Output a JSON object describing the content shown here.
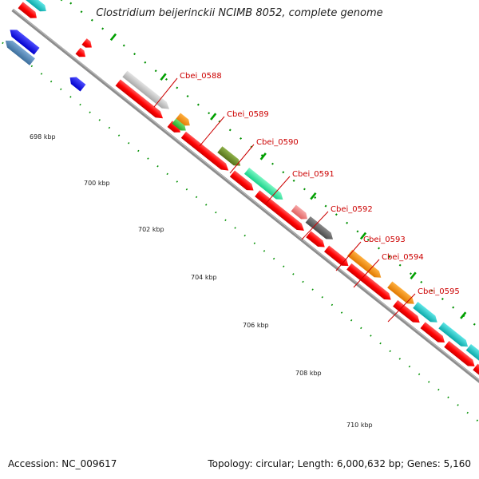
{
  "title": "Clostridium beijerinckii NCIMB 8052, complete genome",
  "accession": "Accession: NC_009617",
  "summary": "Topology: circular; Length: 6,000,632 bp; Genes: 5,160",
  "ticks": [
    "698 kbp",
    "700 kbp",
    "702 kbp",
    "704 kbp",
    "706 kbp",
    "708 kbp",
    "710 kbp"
  ],
  "gene_labels": [
    "Cbei_0588",
    "Cbei_0589",
    "Cbei_0590",
    "Cbei_0591",
    "Cbei_0592",
    "Cbei_0593",
    "Cbei_0594",
    "Cbei_0595"
  ],
  "colors": {
    "backbone": "#8c8c8c",
    "cds": "#ff0000",
    "minus_strand_blue": "#0000ff",
    "minus_strand_steel": "#4f86b8",
    "cyan": "#14c8c8",
    "gray": "#c8c8c8",
    "orange": "#ff8c00",
    "green": "#3cc83c",
    "olive": "#6b8e23",
    "aquamarine": "#2ef0a0",
    "pink": "#f08080",
    "darkgray": "#646464",
    "tick": "#00a000",
    "dot_track": "#009000",
    "label": "#cc0000"
  }
}
